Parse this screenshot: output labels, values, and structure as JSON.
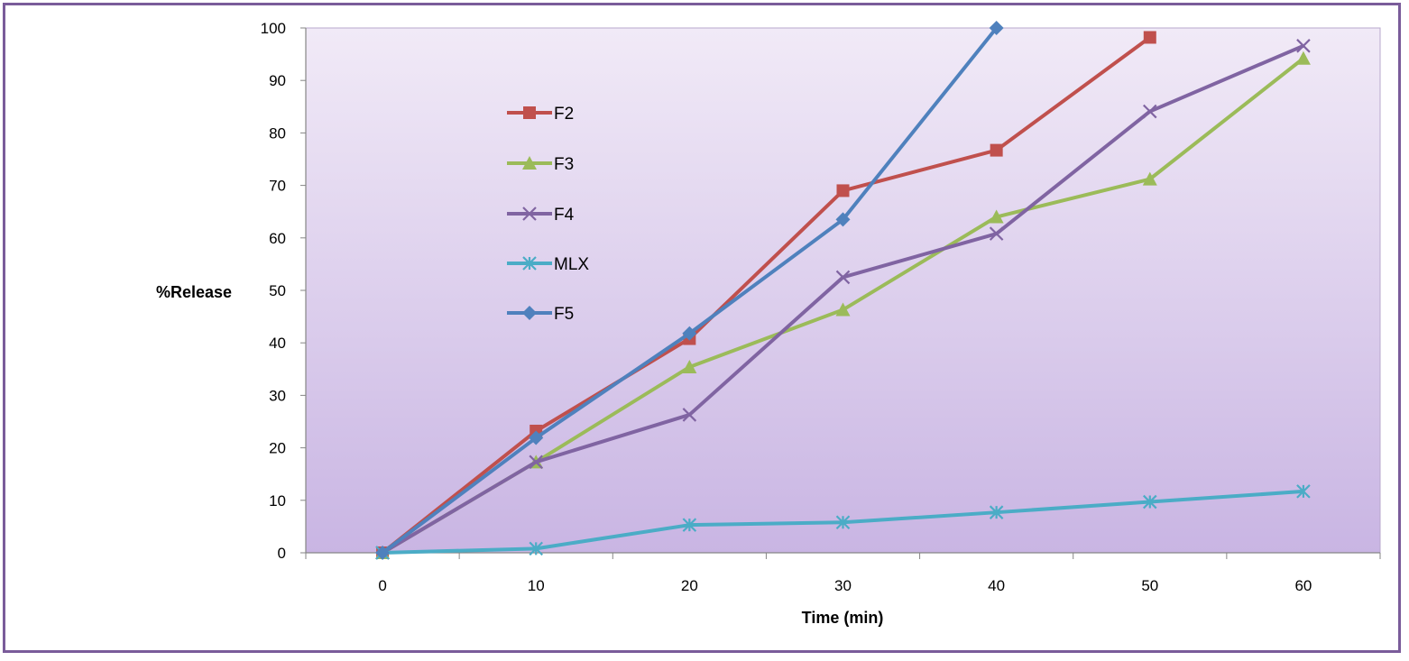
{
  "chart_data": {
    "type": "line",
    "title": "",
    "xlabel": "Time (min)",
    "ylabel": "%Release",
    "x": [
      0,
      10,
      20,
      30,
      40,
      50,
      60
    ],
    "xlim": [
      -5,
      65
    ],
    "ylim": [
      0,
      100
    ],
    "yticks": [
      0,
      10,
      20,
      30,
      40,
      50,
      60,
      70,
      80,
      90,
      100
    ],
    "xticks": [
      0,
      10,
      20,
      30,
      40,
      50,
      60
    ],
    "legend_position": "upper-left inside plot",
    "series": [
      {
        "name": "F2",
        "marker": "square",
        "color": "#c0504d",
        "values": [
          0,
          23.2,
          40.8,
          69,
          76.7,
          98.2,
          null
        ]
      },
      {
        "name": "F3",
        "marker": "triangle",
        "color": "#9bbb59",
        "values": [
          0,
          17.3,
          35.4,
          46.3,
          64,
          71.2,
          94.2
        ]
      },
      {
        "name": "F4",
        "marker": "x",
        "color": "#8064a2",
        "values": [
          0,
          17.3,
          26.3,
          52.5,
          60.8,
          84.1,
          96.6
        ]
      },
      {
        "name": "MLX",
        "marker": "star",
        "color": "#4bacc6",
        "values": [
          0,
          0.8,
          5.3,
          5.8,
          7.7,
          9.7,
          11.7
        ]
      },
      {
        "name": "F5",
        "marker": "diamond",
        "color": "#4f81bd",
        "values": [
          0,
          21.9,
          41.8,
          63.5,
          100,
          null,
          null
        ]
      }
    ]
  }
}
